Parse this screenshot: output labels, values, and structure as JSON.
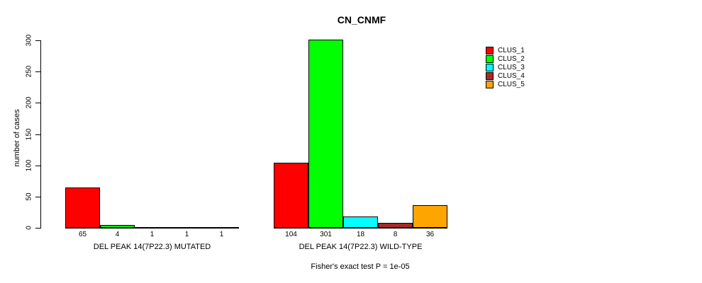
{
  "chart_data": {
    "type": "bar",
    "title": "CN_CNMF",
    "xlabel": "",
    "ylabel": "number of cases",
    "ylim": [
      0,
      300
    ],
    "yticks": [
      0,
      50,
      100,
      150,
      200,
      250,
      300
    ],
    "grid": false,
    "legend_position": "right",
    "bar_value_labels_shown": true,
    "categories": [
      "DEL PEAK 14(7P22.3) MUTATED",
      "DEL PEAK 14(7P22.3) WILD-TYPE"
    ],
    "series": [
      {
        "name": "CLUS_1",
        "color": "#FF0000",
        "values": [
          65,
          104
        ]
      },
      {
        "name": "CLUS_2",
        "color": "#00FF00",
        "values": [
          4,
          301
        ]
      },
      {
        "name": "CLUS_3",
        "color": "#00FFFF",
        "values": [
          1,
          18
        ]
      },
      {
        "name": "CLUS_4",
        "color": "#A52A2A",
        "values": [
          1,
          8
        ]
      },
      {
        "name": "CLUS_5",
        "color": "#FFA500",
        "values": [
          1,
          36
        ]
      }
    ],
    "annotation": "Fisher's exact test P = 1e-05"
  },
  "colors": {
    "background": "#FFFFFF",
    "axis": "#000000",
    "text": "#000000"
  }
}
